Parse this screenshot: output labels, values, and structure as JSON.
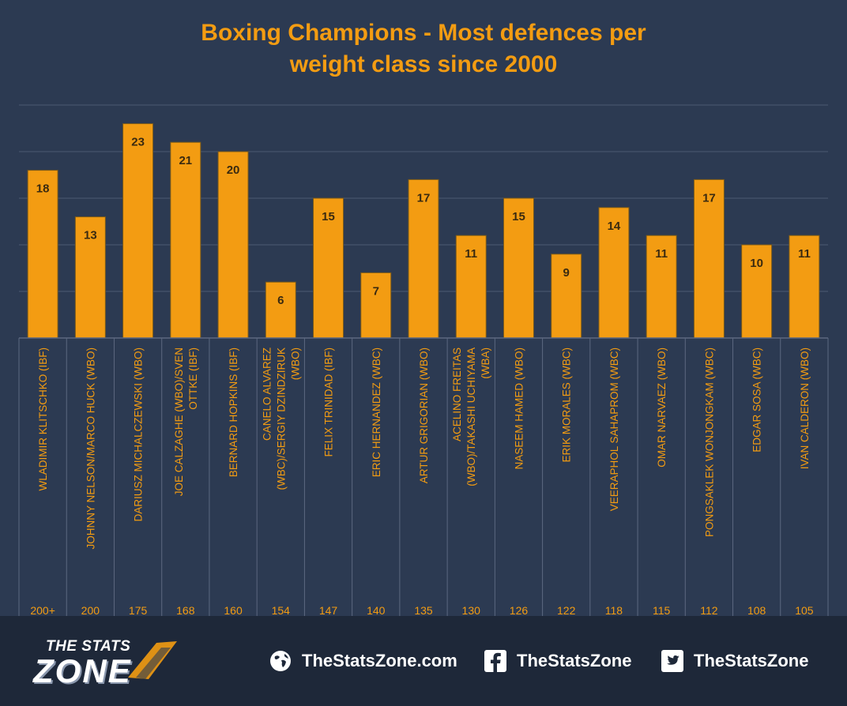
{
  "chart_data": {
    "type": "bar",
    "title_lines": [
      "Boxing Champions - Most defences per",
      "weight class since 2000"
    ],
    "categories": [
      "WLADIMIR KLITSCHKO (IBF)",
      "JOHNNY NELSON/MARCO HUCK (WBO)",
      "DARIUSZ MICHALCZEWSKI (WBO)",
      "JOE CALZAGHE (WBO)/SVEN OTTKE (IBF)",
      "BERNARD HOPKINS (IBF)",
      "CANELO ALVAREZ (WBC)/SERGIY DZINDZIRUK (WBO)",
      "FELIX TRINIDAD (IBF)",
      "ERIC HERNANDEZ (WBC)",
      "ARTUR GRIGORIAN (WBO)",
      "ACELINO FREITAS (WBO)/TAKASHI UCHIYAMA (WBA)",
      "NASEEM HAMED (WBO)",
      "ERIK MORALES (WBC)",
      "VEERAPHOL SAHAPROM (WBC)",
      "OMAR NARVAEZ (WBO)",
      "PONGSAKLEK WONJONGKAM (WBC)",
      "EDGAR SOSA (WBC)",
      "IVAN CALDERON (WBO)"
    ],
    "weight_classes": [
      "200+",
      "200",
      "175",
      "168",
      "160",
      "154",
      "147",
      "140",
      "135",
      "130",
      "126",
      "122",
      "118",
      "115",
      "112",
      "108",
      "105"
    ],
    "values": [
      18,
      13,
      23,
      21,
      20,
      6,
      15,
      7,
      17,
      11,
      15,
      9,
      14,
      11,
      17,
      10,
      11
    ],
    "ylim": [
      0,
      25
    ],
    "grid": true,
    "bar_color": "#f39c12"
  },
  "footer": {
    "logo_top": "THE STATS",
    "logo_bottom": "ZONE",
    "website": "TheStatsZone.com",
    "facebook": "TheStatsZone",
    "twitter": "TheStatsZone"
  },
  "icons": {
    "website": "globe-icon",
    "facebook": "facebook-icon",
    "twitter": "twitter-icon"
  }
}
